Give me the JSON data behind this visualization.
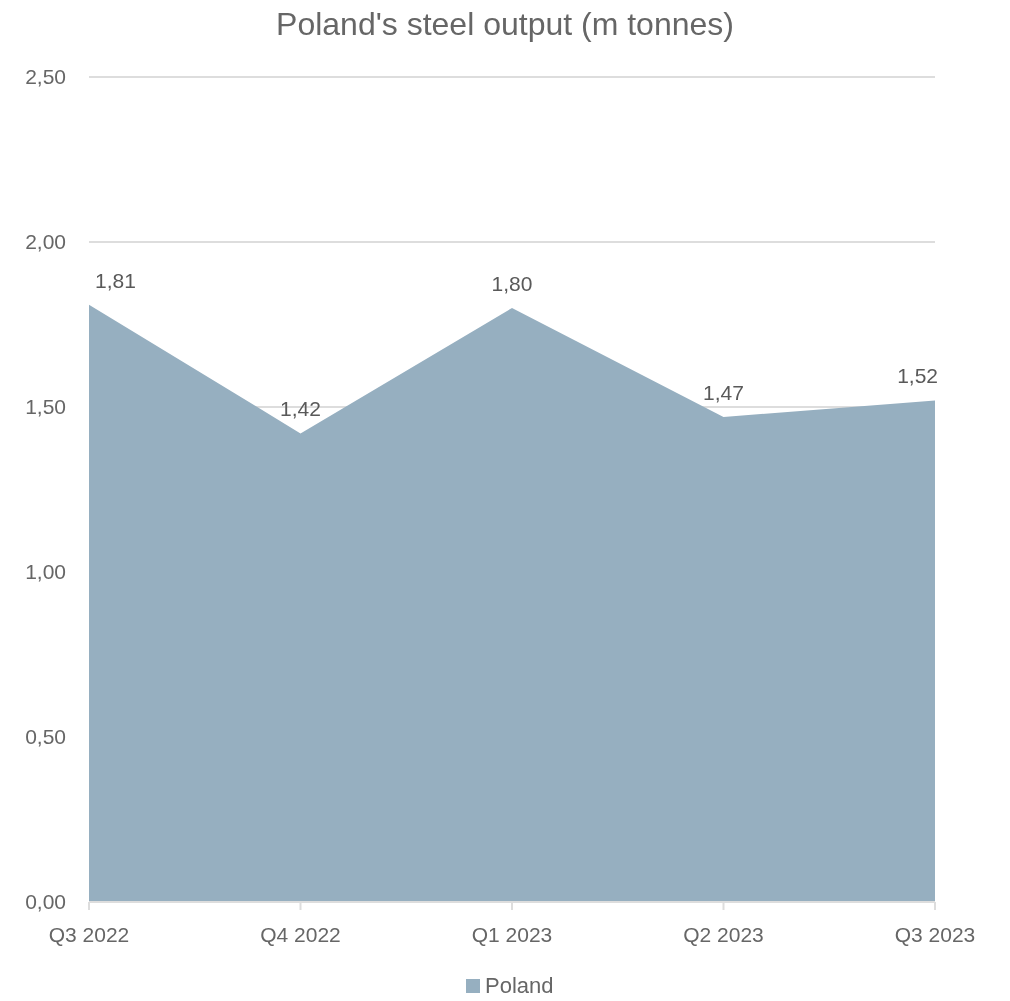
{
  "chart_data": {
    "type": "area",
    "title": "Poland's steel output (m tonnes)",
    "categories": [
      "Q3 2022",
      "Q4 2022",
      "Q1 2023",
      "Q2 2023",
      "Q3 2023"
    ],
    "series": [
      {
        "name": "Poland",
        "color": "#96afc0",
        "values": [
          1.81,
          1.42,
          1.8,
          1.47,
          1.52
        ],
        "value_labels": [
          "1,81",
          "1,42",
          "1,80",
          "1,47",
          "1,52"
        ]
      }
    ],
    "ylim": [
      0,
      2.5
    ],
    "yticks": [
      {
        "value": 0,
        "label": "0,00"
      },
      {
        "value": 0.5,
        "label": "0,50"
      },
      {
        "value": 1,
        "label": "1,00"
      },
      {
        "value": 1.5,
        "label": "1,50"
      },
      {
        "value": 2,
        "label": "2,00"
      },
      {
        "value": 2.5,
        "label": "2,50"
      }
    ],
    "grid": "y",
    "legend": "bottom"
  }
}
